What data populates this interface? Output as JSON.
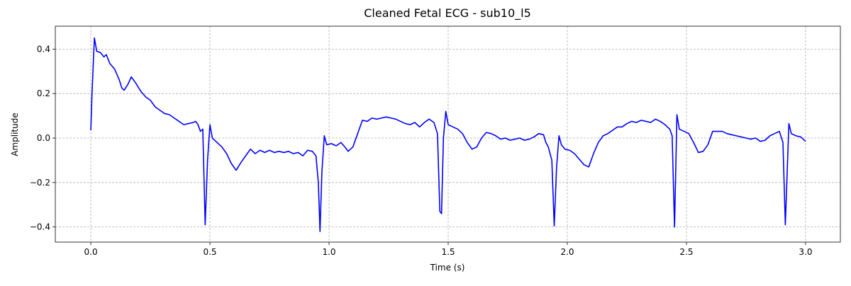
{
  "chart_data": {
    "type": "line",
    "title": "Cleaned Fetal ECG - sub10_l5",
    "xlabel": "Time (s)",
    "ylabel": "Amplitude",
    "color": "blue",
    "grid": true,
    "x": [
      0.0,
      0.005,
      0.015,
      0.025,
      0.04,
      0.055,
      0.065,
      0.08,
      0.1,
      0.12,
      0.13,
      0.14,
      0.155,
      0.17,
      0.19,
      0.21,
      0.23,
      0.25,
      0.27,
      0.29,
      0.31,
      0.33,
      0.35,
      0.37,
      0.39,
      0.41,
      0.43,
      0.44,
      0.45,
      0.46,
      0.47,
      0.48,
      0.49,
      0.5,
      0.51,
      0.53,
      0.55,
      0.57,
      0.59,
      0.61,
      0.63,
      0.65,
      0.67,
      0.69,
      0.71,
      0.73,
      0.75,
      0.77,
      0.79,
      0.81,
      0.83,
      0.85,
      0.87,
      0.89,
      0.91,
      0.93,
      0.945,
      0.955,
      0.962,
      0.97,
      0.98,
      0.99,
      1.01,
      1.03,
      1.05,
      1.07,
      1.08,
      1.1,
      1.12,
      1.14,
      1.16,
      1.18,
      1.2,
      1.22,
      1.24,
      1.26,
      1.28,
      1.3,
      1.32,
      1.34,
      1.36,
      1.38,
      1.4,
      1.42,
      1.44,
      1.455,
      1.465,
      1.472,
      1.48,
      1.49,
      1.5,
      1.52,
      1.54,
      1.56,
      1.58,
      1.6,
      1.62,
      1.64,
      1.66,
      1.68,
      1.7,
      1.72,
      1.74,
      1.76,
      1.78,
      1.8,
      1.82,
      1.84,
      1.86,
      1.88,
      1.9,
      1.91,
      1.92,
      1.935,
      1.945,
      1.955,
      1.965,
      1.975,
      1.99,
      2.01,
      2.03,
      2.05,
      2.07,
      2.09,
      2.11,
      2.13,
      2.15,
      2.17,
      2.19,
      2.21,
      2.23,
      2.25,
      2.27,
      2.29,
      2.31,
      2.33,
      2.35,
      2.37,
      2.39,
      2.41,
      2.43,
      2.44,
      2.45,
      2.46,
      2.47,
      2.49,
      2.51,
      2.53,
      2.55,
      2.57,
      2.59,
      2.61,
      2.63,
      2.65,
      2.67,
      2.69,
      2.71,
      2.73,
      2.75,
      2.77,
      2.79,
      2.81,
      2.83,
      2.85,
      2.87,
      2.89,
      2.905,
      2.915,
      2.93,
      2.94,
      2.96,
      2.98,
      3.0
    ],
    "values": [
      0.035,
      0.2,
      0.45,
      0.39,
      0.385,
      0.365,
      0.375,
      0.335,
      0.31,
      0.26,
      0.225,
      0.215,
      0.24,
      0.275,
      0.245,
      0.21,
      0.185,
      0.17,
      0.14,
      0.125,
      0.11,
      0.105,
      0.09,
      0.075,
      0.06,
      0.065,
      0.07,
      0.075,
      0.06,
      0.03,
      0.04,
      -0.39,
      -0.1,
      0.06,
      0.0,
      -0.02,
      -0.04,
      -0.07,
      -0.115,
      -0.145,
      -0.11,
      -0.08,
      -0.05,
      -0.07,
      -0.055,
      -0.065,
      -0.055,
      -0.065,
      -0.06,
      -0.065,
      -0.06,
      -0.07,
      -0.065,
      -0.08,
      -0.055,
      -0.06,
      -0.08,
      -0.2,
      -0.42,
      -0.15,
      0.01,
      -0.03,
      -0.025,
      -0.035,
      -0.02,
      -0.045,
      -0.06,
      -0.04,
      0.02,
      0.08,
      0.075,
      0.09,
      0.085,
      0.09,
      0.095,
      0.09,
      0.085,
      0.075,
      0.065,
      0.06,
      0.07,
      0.05,
      0.07,
      0.085,
      0.07,
      0.02,
      -0.33,
      -0.34,
      0.0,
      0.12,
      0.06,
      0.05,
      0.04,
      0.02,
      -0.02,
      -0.05,
      -0.04,
      0.0,
      0.025,
      0.02,
      0.01,
      -0.005,
      0.0,
      -0.01,
      -0.005,
      0.0,
      -0.01,
      -0.005,
      0.005,
      0.02,
      0.015,
      -0.02,
      -0.04,
      -0.1,
      -0.395,
      -0.13,
      0.01,
      -0.03,
      -0.05,
      -0.055,
      -0.07,
      -0.095,
      -0.12,
      -0.13,
      -0.07,
      -0.02,
      0.01,
      0.02,
      0.035,
      0.05,
      0.05,
      0.065,
      0.075,
      0.07,
      0.08,
      0.075,
      0.07,
      0.085,
      0.075,
      0.06,
      0.04,
      0.01,
      -0.4,
      0.105,
      0.04,
      0.03,
      0.02,
      -0.02,
      -0.065,
      -0.06,
      -0.03,
      0.03,
      0.03,
      0.03,
      0.02,
      0.015,
      0.01,
      0.005,
      0.0,
      -0.005,
      0.0,
      -0.015,
      -0.01,
      0.01,
      0.02,
      0.03,
      -0.02,
      -0.39,
      0.065,
      0.02,
      0.01,
      0.005,
      -0.015
    ],
    "xlim": [
      -0.149,
      3.146
    ],
    "ylim": [
      -0.468,
      0.503
    ],
    "xticks": [
      {
        "value": 0,
        "label": "0.0"
      },
      0.5,
      {
        "value": 1,
        "label": "1.0"
      },
      1.5,
      {
        "value": 2,
        "label": "2.0"
      },
      2.5,
      {
        "value": 3,
        "label": "3.0"
      }
    ],
    "yticks": [
      {
        "value": -0.4,
        "label": "−0.4"
      },
      {
        "value": -0.2,
        "label": "−0.2"
      },
      {
        "value": 0,
        "label": "0.0"
      },
      0.2,
      0.4
    ]
  }
}
